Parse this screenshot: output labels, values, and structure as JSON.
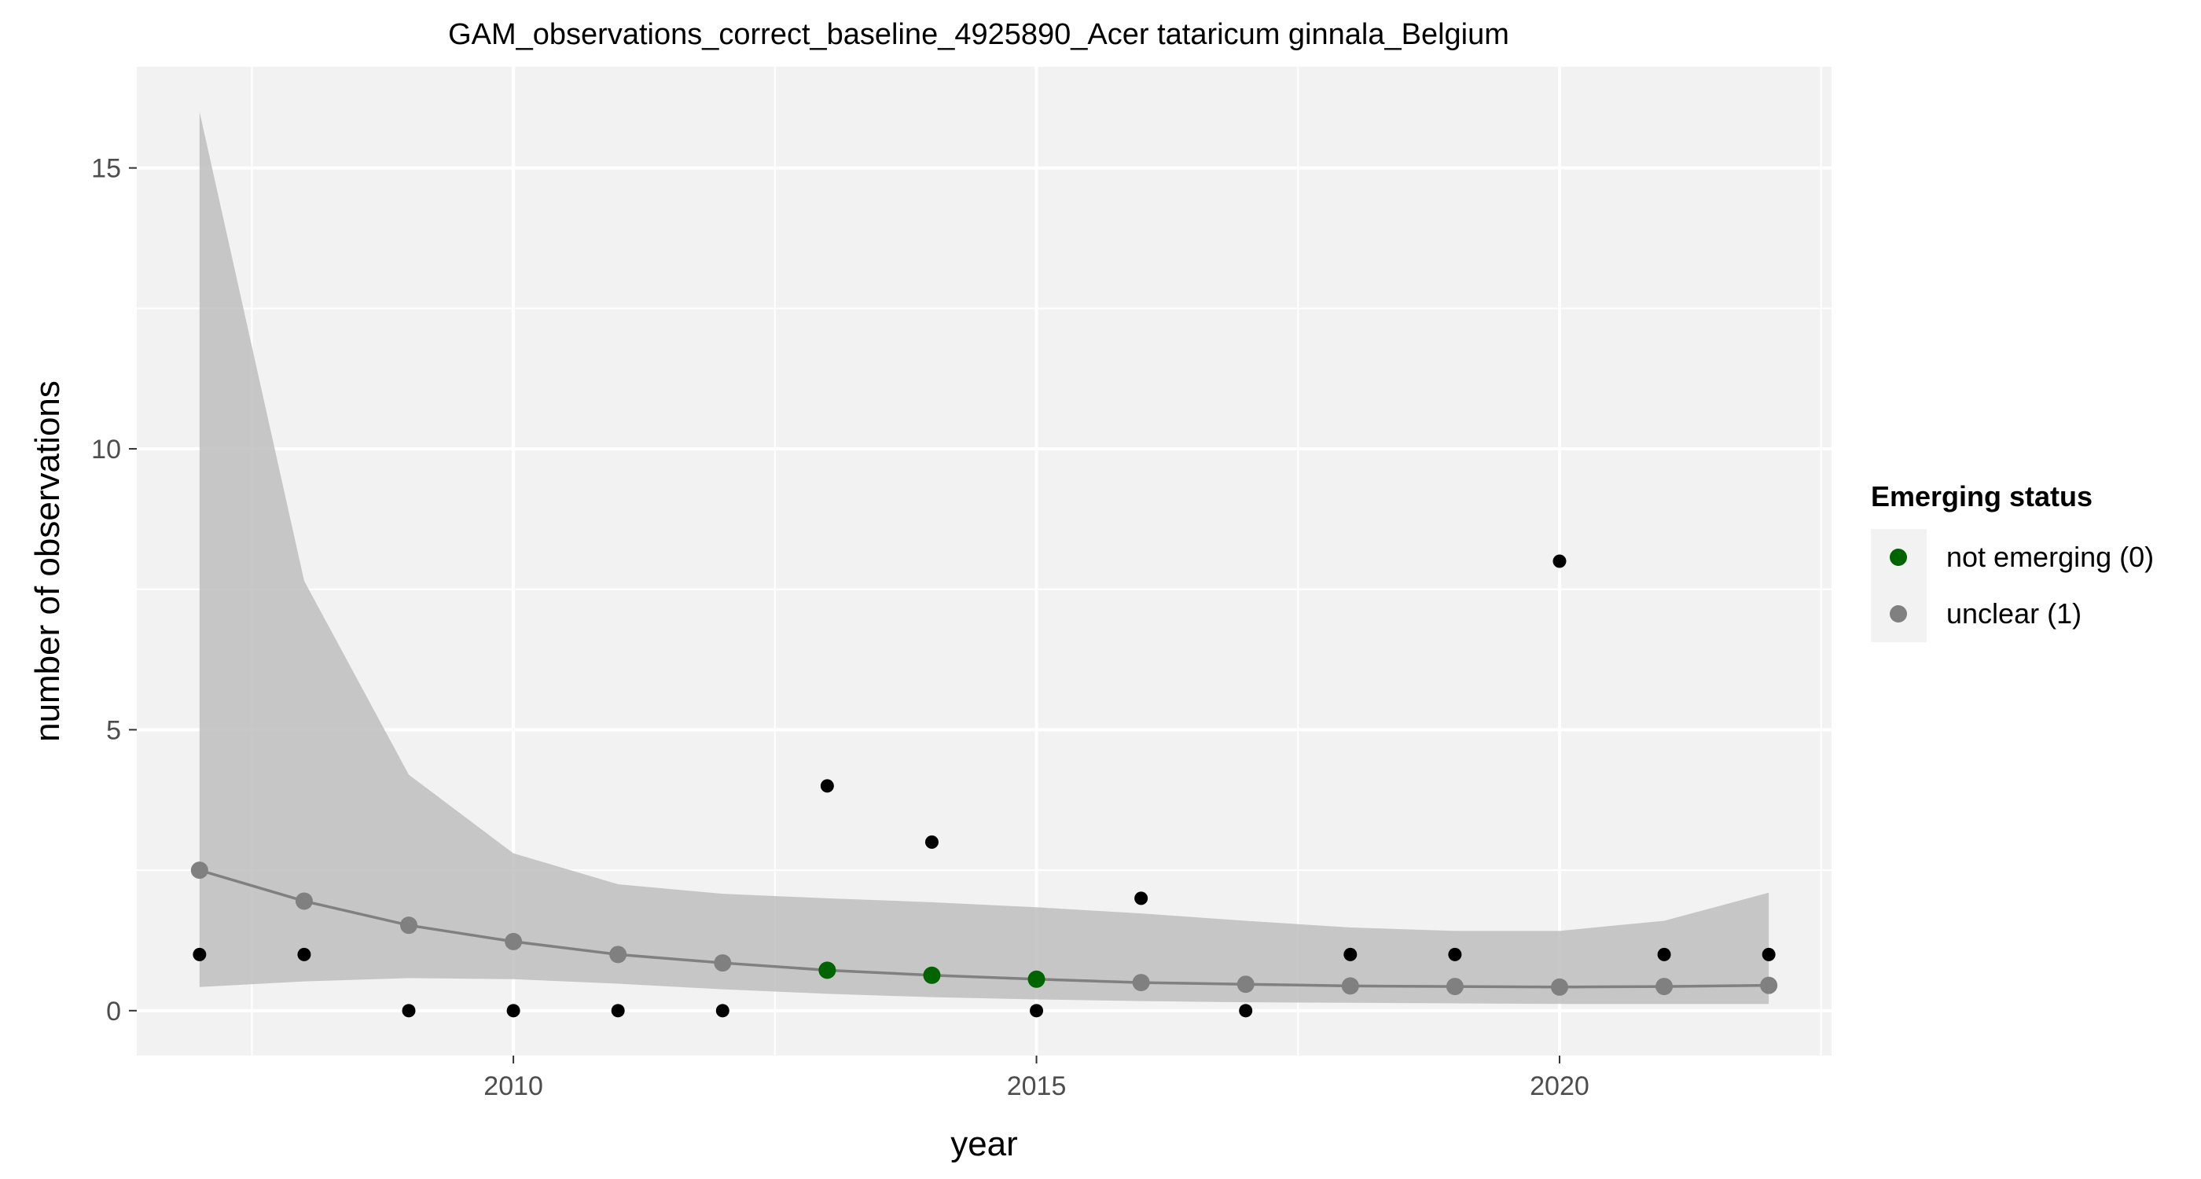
{
  "chart_data": {
    "type": "scatter",
    "title": "GAM_observations_correct_baseline_4925890_Acer tataricum ginnala_Belgium",
    "xlabel": "year",
    "ylabel": "number of observations",
    "xlim": [
      2006.4,
      2022.6
    ],
    "ylim": [
      -0.8,
      16.8
    ],
    "x_ticks": [
      2010,
      2015,
      2020
    ],
    "x_tick_labels": [
      "2010",
      "2015",
      "2020"
    ],
    "y_ticks": [
      0,
      5,
      10,
      15
    ],
    "y_tick_labels": [
      "0",
      "5",
      "10",
      "15"
    ],
    "grid": true,
    "legend_position": "right",
    "legend": {
      "title": "Emerging status",
      "entries": [
        {
          "label": "not emerging (0)",
          "color": "#006400"
        },
        {
          "label": "unclear (1)",
          "color": "#808080"
        }
      ]
    },
    "colors": {
      "panel_background": "#f2f2f2",
      "grid": "#ffffff",
      "band": "#bebebe",
      "fit_line": "#808080",
      "observed_points": "#000000",
      "not_emerging": "#006400",
      "unclear": "#808080"
    },
    "series": [
      {
        "role": "observed",
        "x": [
          2007,
          2008,
          2009,
          2010,
          2011,
          2012,
          2013,
          2014,
          2015,
          2016,
          2017,
          2018,
          2019,
          2020,
          2021,
          2022
        ],
        "y": [
          1,
          1,
          0,
          0,
          0,
          0,
          4,
          3,
          0,
          2,
          0,
          1,
          1,
          8,
          1,
          1
        ]
      },
      {
        "role": "fit",
        "x": [
          2007,
          2008,
          2009,
          2010,
          2011,
          2012,
          2013,
          2014,
          2015,
          2016,
          2017,
          2018,
          2019,
          2020,
          2021,
          2022
        ],
        "y": [
          2.5,
          1.95,
          1.52,
          1.23,
          1.0,
          0.85,
          0.72,
          0.63,
          0.56,
          0.5,
          0.47,
          0.44,
          0.43,
          0.42,
          0.43,
          0.45
        ],
        "lower": [
          0.42,
          0.52,
          0.58,
          0.56,
          0.48,
          0.38,
          0.3,
          0.24,
          0.2,
          0.17,
          0.15,
          0.14,
          0.13,
          0.12,
          0.12,
          0.12
        ],
        "upper": [
          16.0,
          7.65,
          4.2,
          2.8,
          2.25,
          2.08,
          2.0,
          1.93,
          1.84,
          1.73,
          1.6,
          1.48,
          1.42,
          1.42,
          1.6,
          2.1
        ],
        "status": [
          1,
          1,
          1,
          1,
          1,
          1,
          0,
          0,
          0,
          1,
          1,
          1,
          1,
          1,
          1,
          1
        ]
      }
    ]
  }
}
